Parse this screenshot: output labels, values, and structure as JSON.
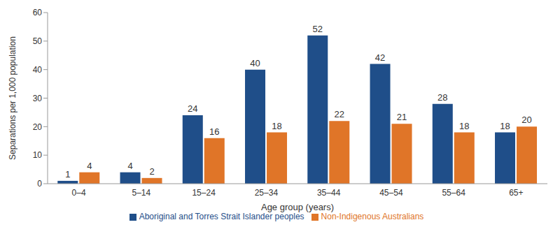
{
  "chart_data": {
    "type": "bar",
    "x_label": "Age group (years)",
    "y_label": "Separations per 1,000 population",
    "categories": [
      "0–4",
      "5–14",
      "15–24",
      "25–34",
      "35–44",
      "45–54",
      "55–64",
      "65+"
    ],
    "series": [
      {
        "name": "Aboriginal and Torres Strait Islander peoples",
        "color": "#1f4e89",
        "values": [
          1,
          4,
          24,
          40,
          52,
          42,
          28,
          18
        ]
      },
      {
        "name": "Non-Indigenous Australians",
        "color": "#e07528",
        "values": [
          4,
          2,
          16,
          18,
          22,
          21,
          18,
          20
        ]
      }
    ],
    "ylim": [
      0,
      60
    ],
    "yticks": [
      0,
      10,
      20,
      30,
      40,
      50,
      60
    ],
    "grid": false,
    "legend": "bottom",
    "data_labels": true
  }
}
